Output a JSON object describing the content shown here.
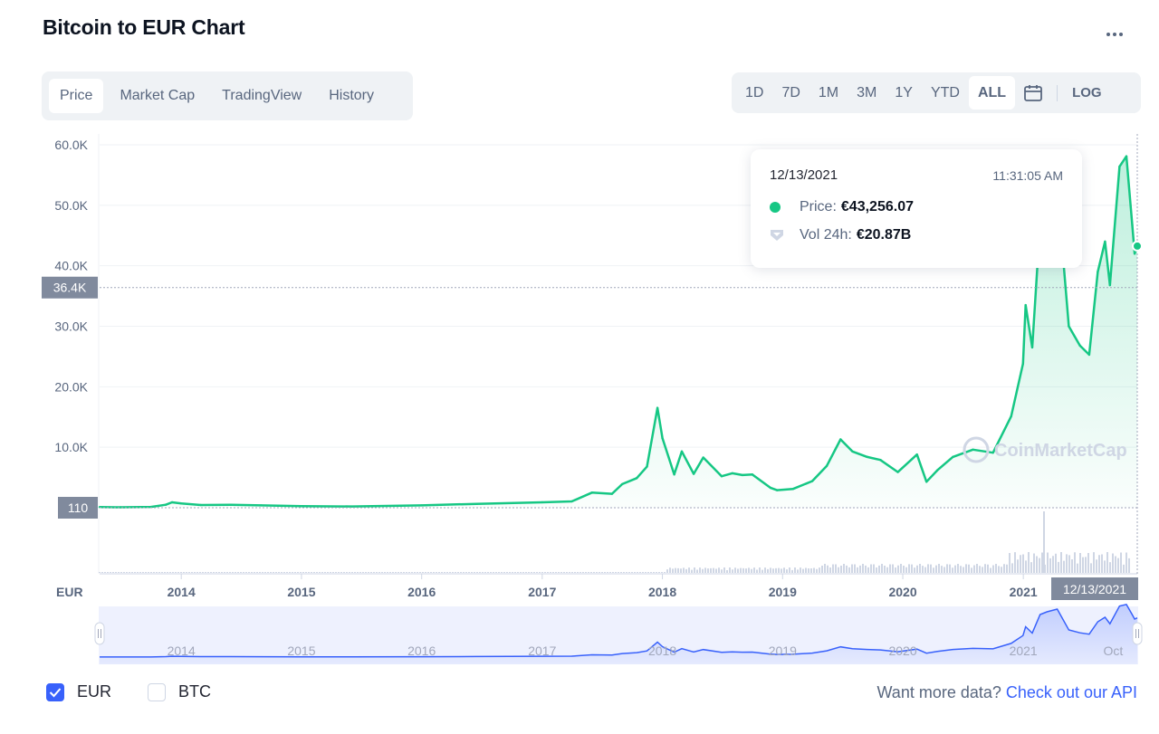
{
  "title": "Bitcoin to EUR Chart",
  "tabs": [
    {
      "label": "Price",
      "active": true
    },
    {
      "label": "Market Cap",
      "active": false
    },
    {
      "label": "TradingView",
      "active": false
    },
    {
      "label": "History",
      "active": false
    }
  ],
  "ranges": [
    {
      "label": "1D",
      "active": false
    },
    {
      "label": "7D",
      "active": false
    },
    {
      "label": "1M",
      "active": false
    },
    {
      "label": "3M",
      "active": false
    },
    {
      "label": "1Y",
      "active": false
    },
    {
      "label": "YTD",
      "active": false
    },
    {
      "label": "ALL",
      "active": true
    }
  ],
  "log_label": "LOG",
  "tooltip": {
    "date": "12/13/2021",
    "time": "11:31:05 AM",
    "price_label": "Price:",
    "price_value": "€43,256.07",
    "vol_label": "Vol 24h:",
    "vol_value": "€20.87B"
  },
  "currency_options": [
    {
      "label": "EUR",
      "checked": true
    },
    {
      "label": "BTC",
      "checked": false
    }
  ],
  "api_text": "Want more data?",
  "api_link": "Check out our API",
  "watermark": "CoinMarketCap",
  "colors": {
    "line": "#16c784",
    "accent": "#3861fb",
    "volume": "#cfd6e4"
  },
  "chart_data": {
    "type": "line",
    "currency_label": "EUR",
    "y_ticks": [
      "10.0K",
      "20.0K",
      "30.0K",
      "40.0K",
      "50.0K",
      "60.0K"
    ],
    "y_tick_values": [
      10000,
      20000,
      30000,
      40000,
      50000,
      60000
    ],
    "ylim": [
      0,
      60000
    ],
    "x_ticks": [
      "2014",
      "2015",
      "2016",
      "2017",
      "2018",
      "2019",
      "2020",
      "2021"
    ],
    "xlim": [
      "2013-04-28",
      "2021-12-13"
    ],
    "crosshair_y_label": "36.4K",
    "crosshair_y_value": 36400,
    "baseline_label": "110",
    "baseline_value": 110,
    "crosshair_x_label": "12/13/2021",
    "navigator_x_labels": [
      "2014",
      "2015",
      "2016",
      "2017",
      "2018",
      "2019",
      "2020",
      "2021",
      "Oct"
    ],
    "series": [
      {
        "name": "Price",
        "x": [
          "2013-04-28",
          "2013-07-01",
          "2013-10-01",
          "2013-11-15",
          "2013-12-04",
          "2014-01-01",
          "2014-03-01",
          "2014-06-01",
          "2014-09-01",
          "2015-01-01",
          "2015-06-01",
          "2016-01-01",
          "2016-06-15",
          "2017-01-01",
          "2017-04-01",
          "2017-06-01",
          "2017-08-01",
          "2017-09-01",
          "2017-10-15",
          "2017-11-15",
          "2017-12-17",
          "2018-01-01",
          "2018-02-06",
          "2018-03-01",
          "2018-04-06",
          "2018-05-05",
          "2018-06-30",
          "2018-08-01",
          "2018-09-01",
          "2018-10-01",
          "2018-11-25",
          "2018-12-15",
          "2019-02-01",
          "2019-04-01",
          "2019-05-15",
          "2019-06-26",
          "2019-08-01",
          "2019-09-15",
          "2019-10-25",
          "2019-12-17",
          "2020-02-13",
          "2020-03-13",
          "2020-04-15",
          "2020-06-01",
          "2020-08-01",
          "2020-10-01",
          "2020-11-25",
          "2020-12-31",
          "2021-01-08",
          "2021-01-28",
          "2021-02-21",
          "2021-03-14",
          "2021-04-14",
          "2021-05-19",
          "2021-06-22",
          "2021-07-20",
          "2021-08-15",
          "2021-09-06",
          "2021-09-21",
          "2021-10-20",
          "2021-11-10",
          "2021-11-28",
          "2021-12-05",
          "2021-12-13"
        ],
        "values": [
          110,
          80,
          140,
          500,
          900,
          700,
          450,
          480,
          390,
          260,
          210,
          390,
          640,
          900,
          1050,
          2500,
          2300,
          3900,
          4900,
          6800,
          16500,
          11500,
          5500,
          9300,
          5600,
          8300,
          5200,
          5700,
          5400,
          5500,
          3300,
          2900,
          3100,
          4400,
          6900,
          11300,
          9300,
          8400,
          7900,
          5900,
          8800,
          4300,
          6200,
          8400,
          9600,
          9100,
          15100,
          23800,
          33500,
          26500,
          47000,
          50000,
          53000,
          30000,
          26800,
          25300,
          39000,
          44000,
          36800,
          56400,
          58100,
          46700,
          42000,
          43256
        ]
      }
    ],
    "volume_note": "24h volume bars shown beneath price"
  }
}
